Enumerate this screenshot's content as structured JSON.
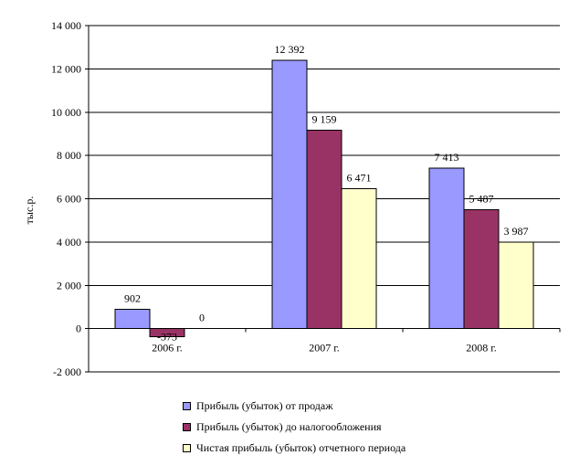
{
  "chart_data": {
    "type": "bar",
    "categories": [
      "2006 г.",
      "2007 г.",
      "2008 г."
    ],
    "series": [
      {
        "name": "Прибыль (убыток) от продаж",
        "color": "#9999ff",
        "values": [
          902,
          12392,
          7413
        ],
        "labels": [
          "902",
          "12 392",
          "7 413"
        ]
      },
      {
        "name": "Прибыль (убыток) до налогообложения",
        "color": "#993366",
        "values": [
          -373,
          9159,
          5487
        ],
        "labels": [
          "-373",
          "9 159",
          "5 487"
        ]
      },
      {
        "name": "Чистая прибыль (убыток) отчетного периода",
        "color": "#ffffcc",
        "values": [
          0,
          6471,
          3987
        ],
        "labels": [
          "0",
          "6 471",
          "3 987"
        ]
      }
    ],
    "ylabel": "тыс.р.",
    "ylim": [
      -2000,
      14000
    ],
    "yticks": [
      -2000,
      0,
      2000,
      4000,
      6000,
      8000,
      10000,
      12000,
      14000
    ],
    "ytick_labels": [
      "-2 000",
      "0",
      "2 000",
      "4 000",
      "6 000",
      "8 000",
      "10 000",
      "12 000",
      "14 000"
    ],
    "grid": true,
    "legend_position": "bottom"
  }
}
